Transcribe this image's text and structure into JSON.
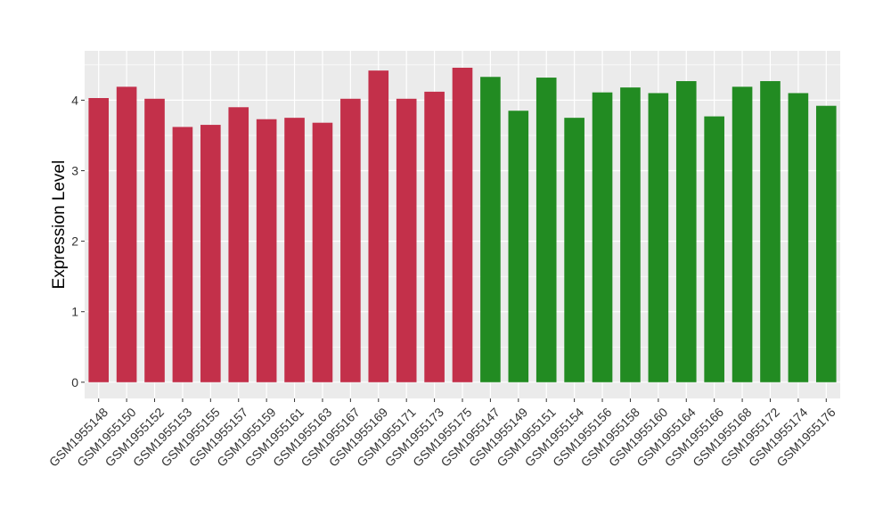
{
  "chart_data": {
    "type": "bar",
    "title": "",
    "xlabel": "",
    "ylabel": "Expression Level",
    "ylim": [
      -0.23,
      4.7
    ],
    "yticks": [
      0,
      1,
      2,
      3,
      4
    ],
    "yticks_labels": [
      "0",
      "1",
      "2",
      "3",
      "4"
    ],
    "grid": true,
    "legend": "none",
    "colors": {
      "group_red": "#C3304A",
      "group_green": "#228B22",
      "panel_bg": "#EBEBEB",
      "grid": "#FFFFFF"
    },
    "categories": [
      "GSM1955148",
      "GSM1955150",
      "GSM1955152",
      "GSM1955153",
      "GSM1955155",
      "GSM1955157",
      "GSM1955159",
      "GSM1955161",
      "GSM1955163",
      "GSM1955167",
      "GSM1955169",
      "GSM1955171",
      "GSM1955173",
      "GSM1955175",
      "GSM1955147",
      "GSM1955149",
      "GSM1955151",
      "GSM1955154",
      "GSM1955156",
      "GSM1955158",
      "GSM1955160",
      "GSM1955164",
      "GSM1955166",
      "GSM1955168",
      "GSM1955172",
      "GSM1955174",
      "GSM1955176"
    ],
    "values": [
      4.03,
      4.19,
      4.02,
      3.62,
      3.65,
      3.9,
      3.73,
      3.75,
      3.68,
      4.02,
      4.42,
      4.02,
      4.12,
      4.46,
      4.33,
      3.85,
      4.32,
      3.75,
      4.11,
      4.18,
      4.1,
      4.27,
      3.77,
      4.19,
      4.27,
      4.1,
      3.92
    ],
    "bar_colors": [
      "#C3304A",
      "#C3304A",
      "#C3304A",
      "#C3304A",
      "#C3304A",
      "#C3304A",
      "#C3304A",
      "#C3304A",
      "#C3304A",
      "#C3304A",
      "#C3304A",
      "#C3304A",
      "#C3304A",
      "#C3304A",
      "#228B22",
      "#228B22",
      "#228B22",
      "#228B22",
      "#228B22",
      "#228B22",
      "#228B22",
      "#228B22",
      "#228B22",
      "#228B22",
      "#228B22",
      "#228B22",
      "#228B22"
    ]
  }
}
